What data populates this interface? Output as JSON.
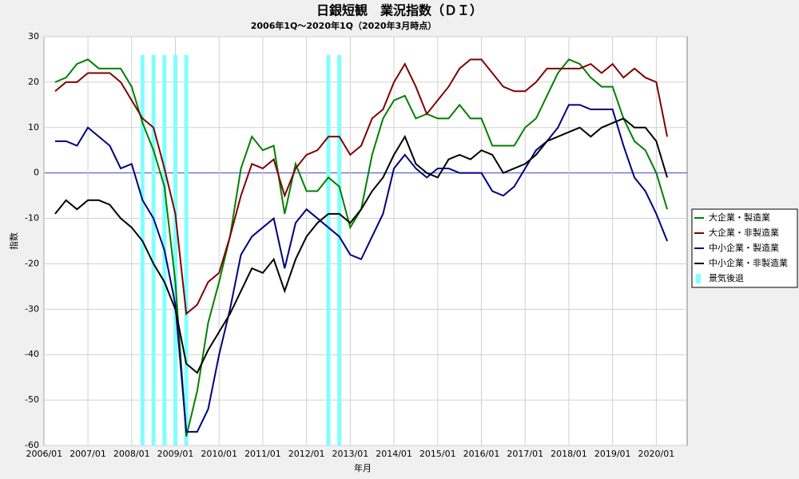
{
  "chart_data": {
    "type": "line",
    "title": "日銀短観　業況指数（ＤＩ）",
    "subtitle": "2006年1Q～2020年1Q（2020年3月時点）",
    "x_label": "年月",
    "y_label": "指数",
    "categories": [
      "2006/01",
      null,
      null,
      null,
      "2007/01",
      null,
      null,
      null,
      "2008/01",
      null,
      null,
      null,
      "2009/01",
      null,
      null,
      null,
      "2010/01",
      null,
      null,
      null,
      "2011/01",
      null,
      null,
      null,
      "2012/01",
      null,
      null,
      null,
      "2013/01",
      null,
      null,
      null,
      "2014/01",
      null,
      null,
      null,
      "2015/01",
      null,
      null,
      null,
      "2016/01",
      null,
      null,
      null,
      "2017/01",
      null,
      null,
      null,
      "2018/01",
      null,
      null,
      null,
      "2019/01",
      null,
      null,
      null,
      "2020/01"
    ],
    "ylim": [
      -60,
      30
    ],
    "yticks": [
      -60,
      -50,
      -40,
      -30,
      -20,
      -10,
      0,
      10,
      20,
      30
    ],
    "grid": true,
    "legend": "right",
    "series": [
      {
        "name": "大企業・製造業",
        "color": "#008000",
        "values": [
          20,
          21,
          24,
          25,
          23,
          23,
          23,
          19,
          11,
          5,
          -3,
          -24,
          -58,
          -48,
          -33,
          -24,
          -14,
          1,
          8,
          5,
          6,
          -9,
          2,
          -4,
          -4,
          -1,
          -3,
          -12,
          -8,
          4,
          12,
          16,
          17,
          12,
          13,
          12,
          12,
          15,
          12,
          12,
          6,
          6,
          6,
          10,
          12,
          17,
          22,
          25,
          24,
          21,
          19,
          19,
          12,
          7,
          5,
          0,
          -8
        ]
      },
      {
        "name": "大企業・非製造業",
        "color": "#800000",
        "values": [
          18,
          20,
          20,
          22,
          22,
          22,
          20,
          16,
          12,
          10,
          1,
          -9,
          -31,
          -29,
          -24,
          -22,
          -14,
          -5,
          2,
          1,
          3,
          -5,
          1,
          4,
          5,
          8,
          8,
          4,
          6,
          12,
          14,
          20,
          24,
          19,
          13,
          16,
          19,
          23,
          25,
          25,
          22,
          19,
          18,
          18,
          20,
          23,
          23,
          23,
          23,
          24,
          22,
          24,
          21,
          23,
          21,
          20,
          8
        ]
      },
      {
        "name": "中小企業・製造業",
        "color": "#000080",
        "values": [
          7,
          7,
          6,
          10,
          8,
          6,
          1,
          2,
          -6,
          -10,
          -17,
          -29,
          -57,
          -57,
          -52,
          -40,
          -30,
          -18,
          -14,
          -12,
          -10,
          -21,
          -11,
          -8,
          -10,
          -12,
          -14,
          -18,
          -19,
          -14,
          -9,
          1,
          4,
          1,
          -1,
          1,
          1,
          0,
          0,
          0,
          -4,
          -5,
          -3,
          1,
          5,
          7,
          10,
          15,
          15,
          14,
          14,
          14,
          6,
          -1,
          -4,
          -9,
          -15
        ]
      },
      {
        "name": "中小企業・非製造業",
        "color": "#000000",
        "values": [
          -9,
          -6,
          -8,
          -6,
          -6,
          -7,
          -10,
          -12,
          -15,
          -20,
          -24,
          -30,
          -42,
          -44,
          -39,
          -35,
          -31,
          -26,
          -21,
          -22,
          -19,
          -26,
          -19,
          -14,
          -11,
          -9,
          -9,
          -11,
          -8,
          -4,
          -1,
          4,
          8,
          2,
          0,
          -1,
          3,
          4,
          3,
          5,
          4,
          0,
          1,
          2,
          4,
          7,
          8,
          9,
          10,
          8,
          10,
          11,
          12,
          10,
          10,
          7,
          -1
        ]
      },
      {
        "name": "景気後退",
        "type": "bar",
        "color": "#80ffff",
        "values": [
          null,
          null,
          null,
          null,
          null,
          null,
          null,
          null,
          26,
          26,
          26,
          26,
          26,
          null,
          null,
          null,
          null,
          null,
          null,
          null,
          null,
          null,
          null,
          null,
          null,
          26,
          26,
          null,
          null,
          null,
          null,
          null,
          null,
          null,
          null,
          null,
          null,
          null,
          null,
          null,
          null,
          null,
          null,
          null,
          null,
          null,
          null,
          null,
          null,
          null,
          null,
          null,
          null,
          null,
          null,
          null,
          null
        ]
      }
    ]
  }
}
